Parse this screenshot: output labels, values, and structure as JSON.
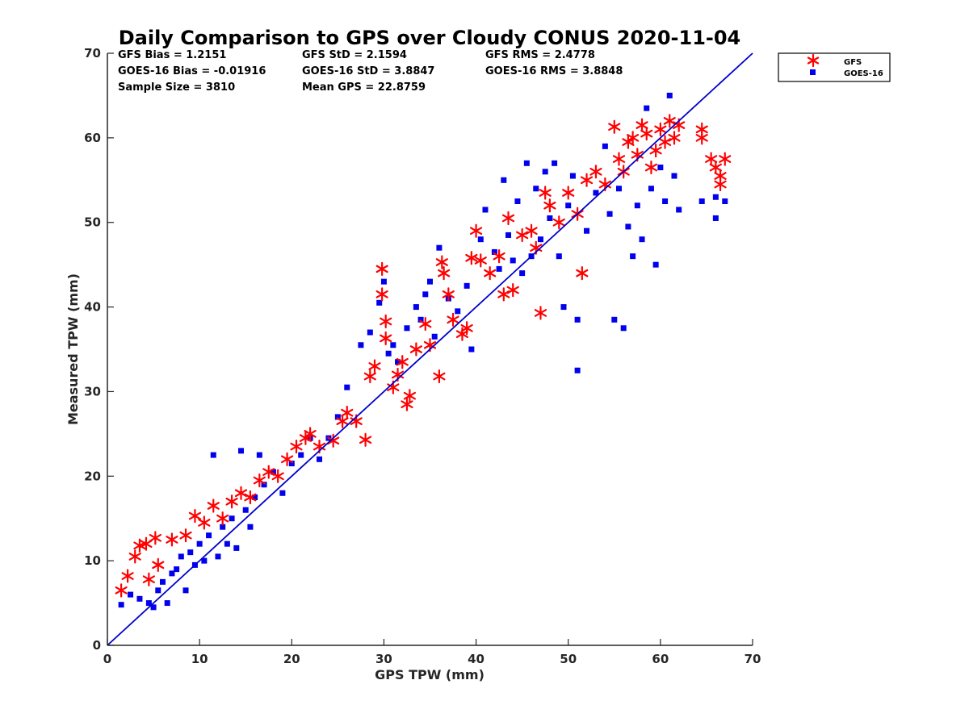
{
  "chart_data": {
    "type": "scatter",
    "title": "Daily Comparison to GPS over Cloudy CONUS 2020-11-04",
    "xlabel": "GPS TPW (mm)",
    "ylabel": "Measured TPW (mm)",
    "xlim": [
      0,
      70
    ],
    "ylim": [
      0,
      70
    ],
    "xticks": [
      "0",
      "10",
      "20",
      "30",
      "40",
      "50",
      "60",
      "70"
    ],
    "yticks": [
      "0",
      "10",
      "20",
      "30",
      "40",
      "50",
      "60",
      "70"
    ],
    "grid": false,
    "legend_position": "outside-top-right",
    "stats": {
      "gfs_bias": "GFS Bias = 1.2151",
      "goes_bias": "GOES-16 Bias = -0.01916",
      "sample_size": "Sample Size = 3810",
      "gfs_std": "GFS StD = 2.1594",
      "goes_std": "GOES-16 StD = 3.8847",
      "mean_gps": "Mean GPS = 22.8759",
      "gfs_rms": "GFS RMS = 2.4778",
      "goes_rms": "GOES-16 RMS = 3.8848"
    },
    "reference_line": {
      "name": "1:1",
      "color": "#0000cc",
      "x": [
        0,
        70
      ],
      "y": [
        0,
        70
      ]
    },
    "series": [
      {
        "name": "GFS",
        "marker": "asterisk",
        "color": "#ff0000",
        "points": [
          [
            1.5,
            6.5
          ],
          [
            2.2,
            8.2
          ],
          [
            3.0,
            10.5
          ],
          [
            3.5,
            11.8
          ],
          [
            4.2,
            12.0
          ],
          [
            5.2,
            12.7
          ],
          [
            4.5,
            7.8
          ],
          [
            5.5,
            9.5
          ],
          [
            7.0,
            12.5
          ],
          [
            8.5,
            13.0
          ],
          [
            9.5,
            15.3
          ],
          [
            10.5,
            14.5
          ],
          [
            11.5,
            16.5
          ],
          [
            12.5,
            15.0
          ],
          [
            13.5,
            17.0
          ],
          [
            14.5,
            18.0
          ],
          [
            15.5,
            17.5
          ],
          [
            16.5,
            19.5
          ],
          [
            17.5,
            20.5
          ],
          [
            18.5,
            20.0
          ],
          [
            19.5,
            22.0
          ],
          [
            20.5,
            23.5
          ],
          [
            21.5,
            24.5
          ],
          [
            22.0,
            25.0
          ],
          [
            23.0,
            23.5
          ],
          [
            24.5,
            24.2
          ],
          [
            25.5,
            26.5
          ],
          [
            26.0,
            27.5
          ],
          [
            27.0,
            26.5
          ],
          [
            28.0,
            24.3
          ],
          [
            28.5,
            31.8
          ],
          [
            29.0,
            33.0
          ],
          [
            29.8,
            44.5
          ],
          [
            29.8,
            41.5
          ],
          [
            30.2,
            38.3
          ],
          [
            30.2,
            36.3
          ],
          [
            31.0,
            30.5
          ],
          [
            31.5,
            32.0
          ],
          [
            32.0,
            33.5
          ],
          [
            32.5,
            28.5
          ],
          [
            32.8,
            29.5
          ],
          [
            33.5,
            35.0
          ],
          [
            34.5,
            38.0
          ],
          [
            35.0,
            35.5
          ],
          [
            36.0,
            31.8
          ],
          [
            36.3,
            45.3
          ],
          [
            36.5,
            44.0
          ],
          [
            37.0,
            41.5
          ],
          [
            37.5,
            38.5
          ],
          [
            38.5,
            36.8
          ],
          [
            39.0,
            37.5
          ],
          [
            39.5,
            45.8
          ],
          [
            40.5,
            45.5
          ],
          [
            40.0,
            49.0
          ],
          [
            41.5,
            44.0
          ],
          [
            42.5,
            46.0
          ],
          [
            43.0,
            41.5
          ],
          [
            43.5,
            50.5
          ],
          [
            44.0,
            42.0
          ],
          [
            45.0,
            48.5
          ],
          [
            46.0,
            49.0
          ],
          [
            46.5,
            47.0
          ],
          [
            47.0,
            39.3
          ],
          [
            47.5,
            53.5
          ],
          [
            48.0,
            52.0
          ],
          [
            49.0,
            50.0
          ],
          [
            50.0,
            53.5
          ],
          [
            51.0,
            51.0
          ],
          [
            51.5,
            44.0
          ],
          [
            52.0,
            55.0
          ],
          [
            53.0,
            56.0
          ],
          [
            54.0,
            54.5
          ],
          [
            55.0,
            61.3
          ],
          [
            55.5,
            57.5
          ],
          [
            56.0,
            56.0
          ],
          [
            56.5,
            59.5
          ],
          [
            57.0,
            60.0
          ],
          [
            57.5,
            58.0
          ],
          [
            58.0,
            61.5
          ],
          [
            58.5,
            60.5
          ],
          [
            59.0,
            56.5
          ],
          [
            59.5,
            58.5
          ],
          [
            60.0,
            61.0
          ],
          [
            60.5,
            59.5
          ],
          [
            61.0,
            62.0
          ],
          [
            61.5,
            60.0
          ],
          [
            62.0,
            61.5
          ],
          [
            64.5,
            61.0
          ],
          [
            64.5,
            60.0
          ],
          [
            65.5,
            57.5
          ],
          [
            66.0,
            56.5
          ],
          [
            66.5,
            54.5
          ],
          [
            66.5,
            55.5
          ],
          [
            67.0,
            57.5
          ]
        ]
      },
      {
        "name": "GOES-16",
        "marker": "square",
        "color": "#0000ee",
        "points": [
          [
            1.5,
            4.8
          ],
          [
            2.5,
            6.0
          ],
          [
            3.5,
            5.5
          ],
          [
            4.5,
            5.0
          ],
          [
            5.0,
            4.5
          ],
          [
            5.5,
            6.5
          ],
          [
            6.0,
            7.5
          ],
          [
            6.5,
            5.0
          ],
          [
            7.0,
            8.5
          ],
          [
            7.5,
            9.0
          ],
          [
            8.0,
            10.5
          ],
          [
            8.5,
            6.5
          ],
          [
            9.0,
            11.0
          ],
          [
            9.5,
            9.5
          ],
          [
            10.0,
            12.0
          ],
          [
            10.5,
            10.0
          ],
          [
            11.0,
            13.0
          ],
          [
            11.5,
            22.5
          ],
          [
            12.0,
            10.5
          ],
          [
            12.5,
            14.0
          ],
          [
            13.0,
            12.0
          ],
          [
            13.5,
            15.0
          ],
          [
            14.0,
            11.5
          ],
          [
            14.5,
            23.0
          ],
          [
            15.0,
            16.0
          ],
          [
            15.5,
            14.0
          ],
          [
            16.0,
            17.5
          ],
          [
            16.5,
            22.5
          ],
          [
            17.0,
            19.0
          ],
          [
            18.0,
            20.5
          ],
          [
            19.0,
            18.0
          ],
          [
            20.0,
            21.5
          ],
          [
            21.0,
            22.5
          ],
          [
            22.0,
            24.5
          ],
          [
            23.0,
            22.0
          ],
          [
            24.0,
            24.5
          ],
          [
            25.0,
            27.0
          ],
          [
            26.0,
            30.5
          ],
          [
            27.5,
            35.5
          ],
          [
            28.5,
            37.0
          ],
          [
            29.5,
            40.5
          ],
          [
            30.0,
            43.0
          ],
          [
            30.5,
            34.5
          ],
          [
            31.0,
            35.5
          ],
          [
            31.5,
            33.5
          ],
          [
            32.5,
            37.5
          ],
          [
            33.5,
            40.0
          ],
          [
            34.0,
            38.5
          ],
          [
            34.5,
            41.5
          ],
          [
            35.0,
            43.0
          ],
          [
            35.5,
            36.5
          ],
          [
            36.0,
            47.0
          ],
          [
            37.0,
            41.0
          ],
          [
            38.0,
            39.5
          ],
          [
            39.0,
            42.5
          ],
          [
            39.5,
            35.0
          ],
          [
            40.5,
            48.0
          ],
          [
            41.0,
            51.5
          ],
          [
            42.0,
            46.5
          ],
          [
            42.5,
            44.5
          ],
          [
            43.0,
            55.0
          ],
          [
            43.5,
            48.5
          ],
          [
            44.0,
            45.5
          ],
          [
            44.5,
            52.5
          ],
          [
            45.0,
            44.0
          ],
          [
            45.5,
            57.0
          ],
          [
            46.0,
            46.0
          ],
          [
            46.5,
            54.0
          ],
          [
            47.0,
            48.0
          ],
          [
            47.5,
            56.0
          ],
          [
            48.0,
            50.5
          ],
          [
            48.5,
            57.0
          ],
          [
            49.0,
            46.0
          ],
          [
            49.5,
            40.0
          ],
          [
            50.0,
            52.0
          ],
          [
            50.5,
            55.5
          ],
          [
            51.0,
            38.5
          ],
          [
            51.0,
            32.5
          ],
          [
            52.0,
            49.0
          ],
          [
            53.0,
            53.5
          ],
          [
            54.0,
            59.0
          ],
          [
            54.5,
            51.0
          ],
          [
            55.0,
            38.5
          ],
          [
            55.5,
            54.0
          ],
          [
            56.0,
            37.5
          ],
          [
            56.5,
            49.5
          ],
          [
            57.0,
            46.0
          ],
          [
            57.5,
            52.0
          ],
          [
            58.0,
            48.0
          ],
          [
            58.5,
            63.5
          ],
          [
            59.0,
            54.0
          ],
          [
            59.5,
            45.0
          ],
          [
            60.0,
            56.5
          ],
          [
            60.5,
            52.5
          ],
          [
            61.0,
            65.0
          ],
          [
            61.5,
            55.5
          ],
          [
            62.0,
            51.5
          ],
          [
            64.5,
            52.5
          ],
          [
            66.0,
            53.0
          ],
          [
            66.0,
            50.5
          ],
          [
            67.0,
            52.5
          ]
        ]
      }
    ]
  }
}
